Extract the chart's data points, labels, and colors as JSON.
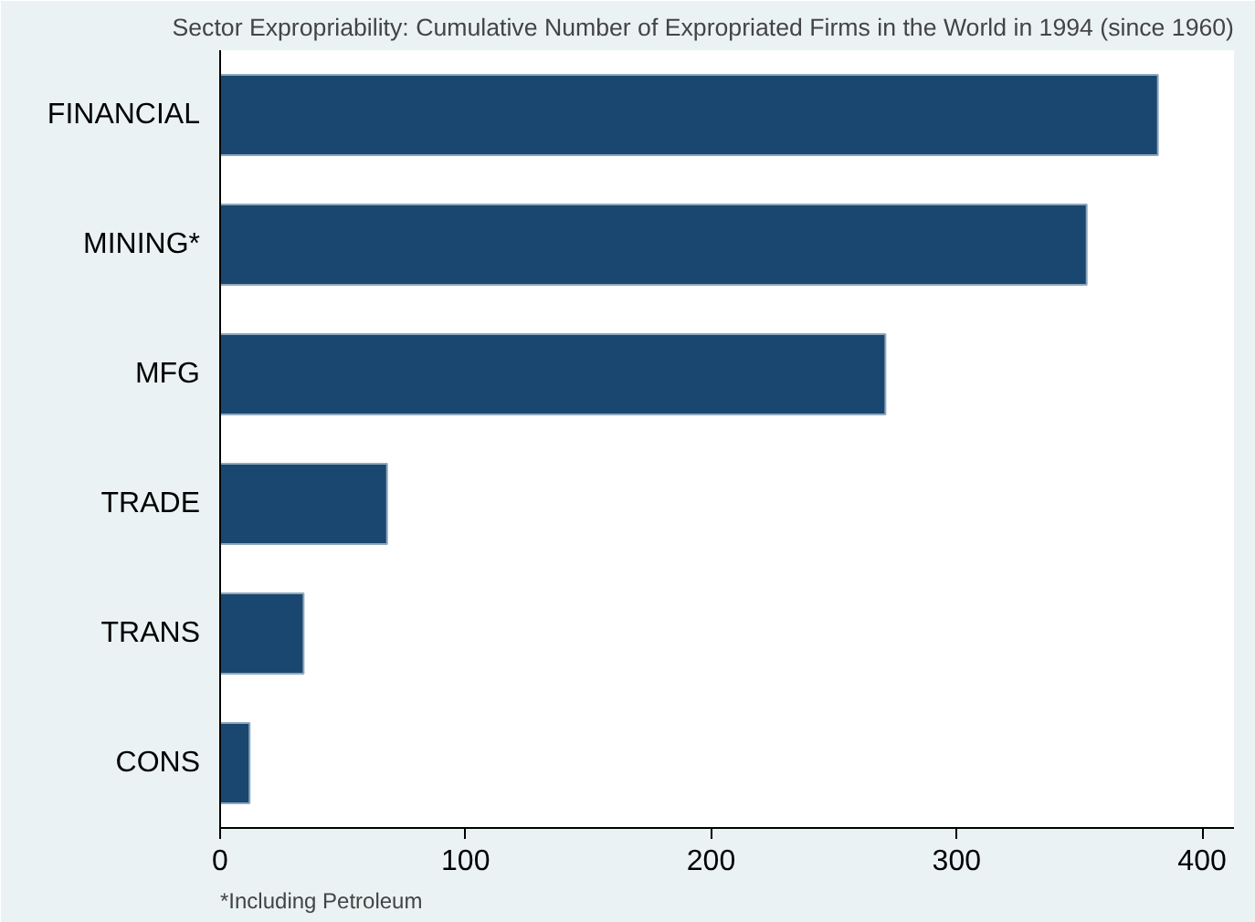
{
  "chart_data": {
    "type": "bar",
    "orientation": "horizontal",
    "title": "Sector Expropriability: Cumulative Number of Expropriated Firms in the World in 1994 (since 1960)",
    "categories": [
      "FINANCIAL",
      "MINING*",
      "MFG",
      "TRADE",
      "TRANS",
      "CONS"
    ],
    "values": [
      382,
      353,
      271,
      68,
      34,
      12
    ],
    "color": "#1a476f",
    "xlim": [
      0,
      413
    ],
    "xticks": [
      0,
      100,
      200,
      300,
      400
    ],
    "grid": false,
    "annotations": [
      "*Including Petroleum"
    ]
  }
}
